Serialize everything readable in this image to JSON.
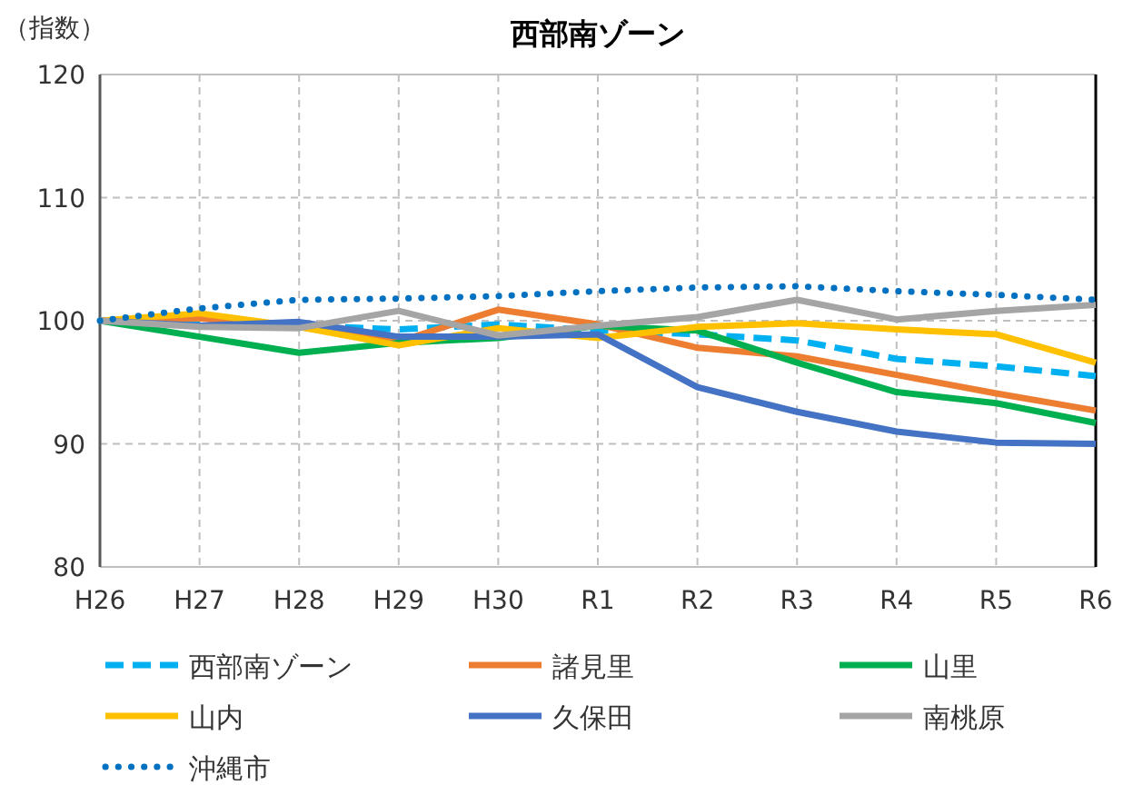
{
  "chart_data": {
    "type": "line",
    "title": "西部南ゾーン",
    "ylabel": "（指数）",
    "categories": [
      "H26",
      "H27",
      "H28",
      "H29",
      "H30",
      "R1",
      "R2",
      "R3",
      "R4",
      "R5",
      "R6"
    ],
    "ylim": [
      80,
      120
    ],
    "yticks": [
      80,
      90,
      100,
      110,
      120
    ],
    "grid": true,
    "legend": "bottom",
    "marker": "none",
    "series": [
      {
        "name": "西部南ゾーン",
        "color": "#00b0f0",
        "line_style": "dashed",
        "values": [
          100,
          99.8,
          99.6,
          99.3,
          99.7,
          99.2,
          98.9,
          98.4,
          96.9,
          96.3,
          95.5
        ]
      },
      {
        "name": "諸見里",
        "color": "#ed7d31",
        "line_style": "solid",
        "values": [
          100,
          100.2,
          99.5,
          98.3,
          100.9,
          99.7,
          97.8,
          97.1,
          95.6,
          94.1,
          92.7
        ]
      },
      {
        "name": "山里",
        "color": "#00b050",
        "line_style": "solid",
        "values": [
          100,
          98.7,
          97.4,
          98.2,
          98.6,
          99.6,
          99.2,
          96.6,
          94.2,
          93.3,
          91.7
        ]
      },
      {
        "name": "山内",
        "color": "#ffc000",
        "line_style": "solid",
        "values": [
          100,
          100.6,
          99.5,
          98.0,
          99.4,
          98.6,
          99.5,
          99.8,
          99.3,
          98.9,
          96.6
        ]
      },
      {
        "name": "久保田",
        "color": "#4472c4",
        "line_style": "solid",
        "values": [
          100,
          99.6,
          99.9,
          98.7,
          98.7,
          98.9,
          94.6,
          92.6,
          91.0,
          90.1,
          90.0
        ]
      },
      {
        "name": "南桃原",
        "color": "#a5a5a5",
        "line_style": "solid",
        "values": [
          100,
          99.5,
          99.4,
          100.8,
          98.8,
          99.6,
          100.3,
          101.7,
          100.1,
          100.8,
          101.3
        ]
      },
      {
        "name": "沖縄市",
        "color": "#0070c0",
        "line_style": "dotted",
        "values": [
          100,
          101.0,
          101.7,
          101.8,
          102.0,
          102.4,
          102.7,
          102.8,
          102.4,
          102.1,
          101.7
        ]
      }
    ]
  }
}
